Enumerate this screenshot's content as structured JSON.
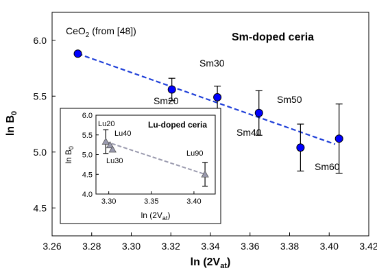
{
  "chart_data": [
    {
      "type": "scatter",
      "title": "Sm-doped ceria",
      "xlabel": "ln (2V",
      "xlabel_sub": "at",
      "xlabel_close": ")",
      "ylabel": "ln B",
      "ylabel_sub": "0",
      "xlim": [
        3.26,
        3.42
      ],
      "ylim": [
        4.25,
        6.25
      ],
      "x_ticks": [
        "3.26",
        "3.28",
        "3.30",
        "3.32",
        "3.34",
        "3.36",
        "3.38",
        "3.40",
        "3.42"
      ],
      "y_ticks": [
        "4.5",
        "5.0",
        "5.5",
        "6.0"
      ],
      "marker_color": "#0000ff",
      "fit_color": "#1f3fd8",
      "points": [
        {
          "label_main": "CeO",
          "label_sub": "2",
          "label_rest": " (from [48])",
          "x": 3.273,
          "y": 5.88,
          "err": 0
        },
        {
          "label_main": "Sm20",
          "label_sub": "",
          "label_rest": "",
          "x": 3.3205,
          "y": 5.56,
          "err": 0.1
        },
        {
          "label_main": "Sm30",
          "label_sub": "",
          "label_rest": "",
          "x": 3.3435,
          "y": 5.49,
          "err": 0.1
        },
        {
          "label_main": "Sm40",
          "label_sub": "",
          "label_rest": "",
          "x": 3.3645,
          "y": 5.35,
          "err": 0.2
        },
        {
          "label_main": "Sm50",
          "label_sub": "",
          "label_rest": "",
          "x": 3.3855,
          "y": 5.04,
          "err": 0.21
        },
        {
          "label_main": "Sm60",
          "label_sub": "",
          "label_rest": "",
          "x": 3.405,
          "y": 5.12,
          "err": 0.31
        }
      ],
      "fit_line": {
        "x": [
          3.273,
          3.403
        ],
        "y": [
          5.88,
          5.07
        ]
      }
    },
    {
      "type": "scatter",
      "title": "Lu-doped ceria",
      "xlabel": "ln (2V",
      "xlabel_sub": "at",
      "xlabel_close": ")",
      "ylabel": "ln B",
      "ylabel_sub": "0",
      "xlim": [
        3.285,
        3.425
      ],
      "ylim": [
        4.0,
        6.0
      ],
      "x_ticks": [
        "3.30",
        "3.35",
        "3.40"
      ],
      "y_ticks": [
        "4.0",
        "4.5",
        "5.0",
        "5.5",
        "6.0"
      ],
      "marker_color": "#9a9aae",
      "fit_color": "#9a9aae",
      "points": [
        {
          "label_main": "Lu20",
          "x": 3.2965,
          "y": 5.33,
          "err": 0.3
        },
        {
          "label_main": "Lu40",
          "x": 3.3015,
          "y": 5.24,
          "err": 0
        },
        {
          "label_main": "Lu30",
          "x": 3.3045,
          "y": 5.13,
          "err": 0
        },
        {
          "label_main": "Lu90",
          "x": 3.413,
          "y": 4.5,
          "err": 0.3
        }
      ],
      "fit_line": {
        "x": [
          3.2965,
          3.413
        ],
        "y": [
          5.33,
          4.5
        ]
      }
    }
  ]
}
